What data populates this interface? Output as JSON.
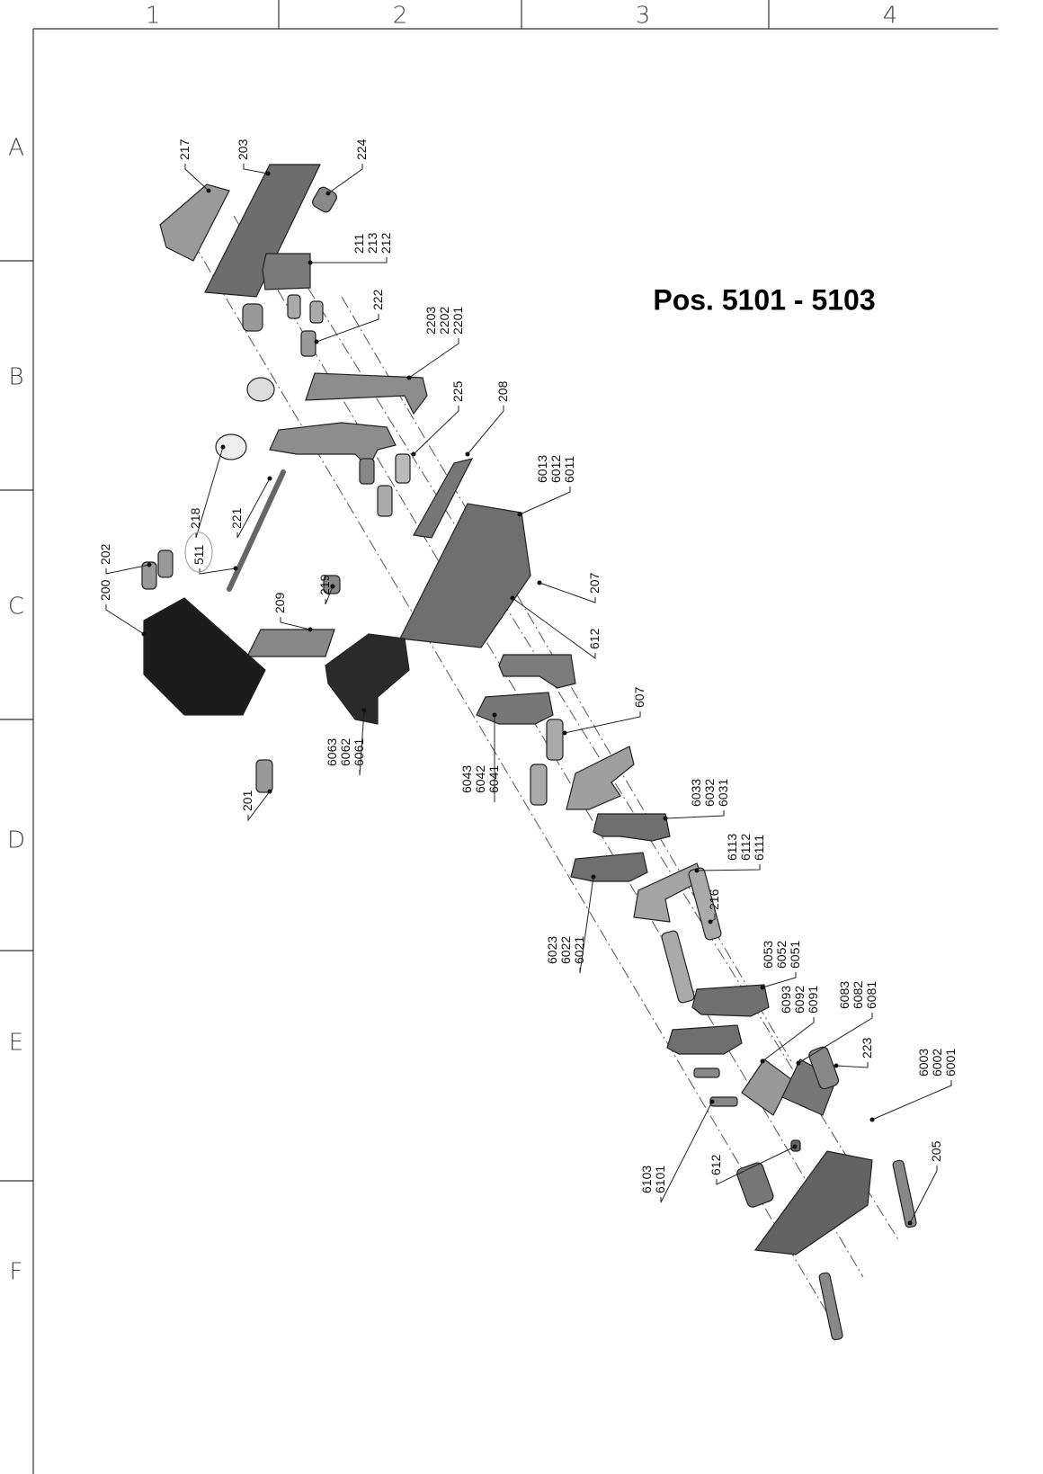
{
  "frame": {
    "columns": [
      "1",
      "2",
      "3",
      "4"
    ],
    "rows": [
      "A",
      "B",
      "C",
      "D",
      "E",
      "F"
    ]
  },
  "title": "Pos. 5101 - 5103",
  "callouts": [
    {
      "lines": [
        "217"
      ]
    },
    {
      "lines": [
        "203"
      ]
    },
    {
      "lines": [
        "224"
      ]
    },
    {
      "lines": [
        "211",
        "213",
        "212"
      ]
    },
    {
      "lines": [
        "222"
      ]
    },
    {
      "lines": [
        "2203",
        "2202",
        "2201"
      ]
    },
    {
      "lines": [
        "225"
      ]
    },
    {
      "lines": [
        "208"
      ]
    },
    {
      "lines": [
        "6013",
        "6012",
        "6011"
      ]
    },
    {
      "lines": [
        "218"
      ]
    },
    {
      "lines": [
        "221"
      ]
    },
    {
      "lines": [
        "511"
      ]
    },
    {
      "lines": [
        "202"
      ]
    },
    {
      "lines": [
        "219"
      ]
    },
    {
      "lines": [
        "209"
      ]
    },
    {
      "lines": [
        "200"
      ]
    },
    {
      "lines": [
        "207"
      ]
    },
    {
      "lines": [
        "612"
      ]
    },
    {
      "lines": [
        "607"
      ]
    },
    {
      "lines": [
        "6063",
        "6062",
        "6061"
      ]
    },
    {
      "lines": [
        "201"
      ]
    },
    {
      "lines": [
        "6043",
        "6042",
        "6041"
      ]
    },
    {
      "lines": [
        "6033",
        "6032",
        "6031"
      ]
    },
    {
      "lines": [
        "6113",
        "6112",
        "6111"
      ]
    },
    {
      "lines": [
        "216"
      ]
    },
    {
      "lines": [
        "6053",
        "6052",
        "6051"
      ]
    },
    {
      "lines": [
        "6023",
        "6022",
        "6021"
      ]
    },
    {
      "lines": [
        "6093",
        "6092",
        "6091"
      ]
    },
    {
      "lines": [
        "6083",
        "6082",
        "6081"
      ]
    },
    {
      "lines": [
        "223"
      ]
    },
    {
      "lines": [
        "6003",
        "6002",
        "6001"
      ]
    },
    {
      "lines": [
        "205"
      ]
    },
    {
      "lines": [
        "6103",
        "6101"
      ]
    },
    {
      "lines": [
        "612"
      ]
    }
  ]
}
